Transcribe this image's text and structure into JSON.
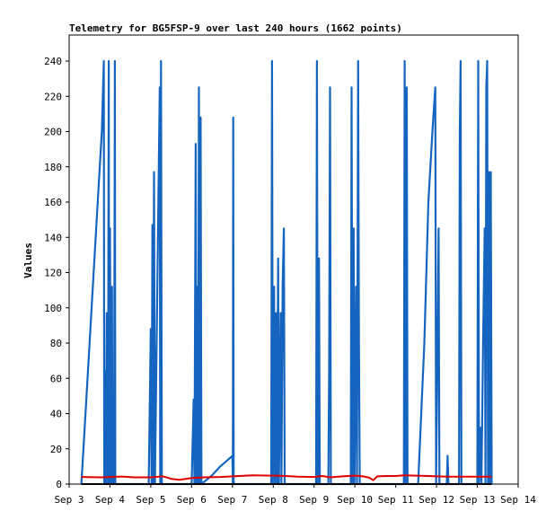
{
  "chart_data": {
    "type": "line",
    "title": "Telemetry for BG5FSP-9 over last 240 hours (1662 points)",
    "xlabel": "",
    "ylabel": "Values",
    "ylim": [
      0,
      240
    ],
    "yticks": [
      0,
      20,
      40,
      60,
      80,
      100,
      120,
      140,
      160,
      180,
      200,
      220,
      240
    ],
    "xlim": [
      3.0,
      14.0
    ],
    "xticks": [
      {
        "x": 3,
        "label": "Sep 3"
      },
      {
        "x": 4,
        "label": "Sep 4"
      },
      {
        "x": 5,
        "label": "Sep 5"
      },
      {
        "x": 6,
        "label": "Sep 6"
      },
      {
        "x": 7,
        "label": "Sep 7"
      },
      {
        "x": 8,
        "label": "Sep 8"
      },
      {
        "x": 9,
        "label": "Sep 9"
      },
      {
        "x": 10,
        "label": "Sep 10"
      },
      {
        "x": 11,
        "label": "Sep 11"
      },
      {
        "x": 12,
        "label": "Sep 12"
      },
      {
        "x": 13,
        "label": "Sep 13"
      },
      {
        "x": 14,
        "label": "Sep 14"
      }
    ],
    "x_unit_note_hidden": "",
    "grid": false,
    "legend": "none",
    "series": [
      {
        "color": "#1565c0",
        "points": [
          [
            3.3,
            0
          ],
          [
            3.35,
            20
          ],
          [
            3.45,
            60
          ],
          [
            3.55,
            100
          ],
          [
            3.7,
            160
          ],
          [
            3.8,
            200
          ],
          [
            3.85,
            240
          ],
          [
            3.86,
            0
          ],
          [
            3.88,
            64
          ],
          [
            3.9,
            0
          ],
          [
            3.92,
            97
          ],
          [
            3.95,
            0
          ],
          [
            3.97,
            240
          ],
          [
            3.98,
            0
          ],
          [
            4.0,
            145
          ],
          [
            4.02,
            0
          ],
          [
            4.05,
            112
          ],
          [
            4.06,
            0
          ],
          [
            4.08,
            48
          ],
          [
            4.1,
            0
          ],
          [
            4.12,
            240
          ],
          [
            4.13,
            0
          ],
          [
            4.95,
            0
          ],
          [
            5.0,
            88
          ],
          [
            5.02,
            0
          ],
          [
            5.04,
            147
          ],
          [
            5.06,
            0
          ],
          [
            5.08,
            177
          ],
          [
            5.1,
            0
          ],
          [
            5.22,
            225
          ],
          [
            5.23,
            0
          ],
          [
            5.25,
            240
          ],
          [
            5.27,
            0
          ],
          [
            6.0,
            0
          ],
          [
            6.05,
            48
          ],
          [
            6.07,
            0
          ],
          [
            6.1,
            193
          ],
          [
            6.12,
            0
          ],
          [
            6.14,
            112
          ],
          [
            6.16,
            0
          ],
          [
            6.18,
            225
          ],
          [
            6.2,
            0
          ],
          [
            6.22,
            208
          ],
          [
            6.24,
            0
          ],
          [
            6.5,
            5
          ],
          [
            6.7,
            10
          ],
          [
            7.0,
            16
          ],
          [
            7.01,
            0
          ],
          [
            7.02,
            208
          ],
          [
            7.03,
            0
          ],
          [
            7.95,
            0
          ],
          [
            7.97,
            240
          ],
          [
            7.99,
            0
          ],
          [
            8.0,
            84
          ],
          [
            8.02,
            112
          ],
          [
            8.04,
            0
          ],
          [
            8.07,
            97
          ],
          [
            8.09,
            0
          ],
          [
            8.12,
            128
          ],
          [
            8.14,
            0
          ],
          [
            8.18,
            97
          ],
          [
            8.2,
            0
          ],
          [
            8.23,
            112
          ],
          [
            8.26,
            145
          ],
          [
            8.28,
            0
          ],
          [
            9.05,
            0
          ],
          [
            9.07,
            240
          ],
          [
            9.09,
            0
          ],
          [
            9.12,
            128
          ],
          [
            9.14,
            0
          ],
          [
            9.35,
            0
          ],
          [
            9.37,
            64
          ],
          [
            9.39,
            225
          ],
          [
            9.41,
            0
          ],
          [
            9.9,
            0
          ],
          [
            9.92,
            225
          ],
          [
            9.94,
            0
          ],
          [
            9.97,
            145
          ],
          [
            9.99,
            0
          ],
          [
            10.03,
            112
          ],
          [
            10.05,
            0
          ],
          [
            10.08,
            240
          ],
          [
            10.1,
            80
          ],
          [
            10.12,
            0
          ],
          [
            11.2,
            0
          ],
          [
            11.22,
            240
          ],
          [
            11.24,
            0
          ],
          [
            11.27,
            225
          ],
          [
            11.29,
            0
          ],
          [
            11.55,
            0
          ],
          [
            11.7,
            80
          ],
          [
            11.8,
            160
          ],
          [
            11.9,
            200
          ],
          [
            11.97,
            225
          ],
          [
            11.99,
            0
          ],
          [
            12.05,
            145
          ],
          [
            12.07,
            0
          ],
          [
            12.25,
            0
          ],
          [
            12.27,
            16
          ],
          [
            12.29,
            0
          ],
          [
            12.55,
            0
          ],
          [
            12.57,
            200
          ],
          [
            12.59,
            240
          ],
          [
            12.61,
            0
          ],
          [
            13.0,
            0
          ],
          [
            13.02,
            240
          ],
          [
            13.04,
            0
          ],
          [
            13.08,
            32
          ],
          [
            13.1,
            0
          ],
          [
            13.14,
            80
          ],
          [
            13.16,
            112
          ],
          [
            13.18,
            145
          ],
          [
            13.2,
            0
          ],
          [
            13.22,
            225
          ],
          [
            13.24,
            240
          ],
          [
            13.26,
            0
          ],
          [
            13.28,
            177
          ],
          [
            13.3,
            0
          ],
          [
            13.33,
            177
          ],
          [
            13.35,
            0
          ]
        ]
      },
      {
        "color": "#e00000",
        "points": [
          [
            3.3,
            4.0
          ],
          [
            3.8,
            3.8
          ],
          [
            4.0,
            4.0
          ],
          [
            4.3,
            4.3
          ],
          [
            4.6,
            3.8
          ],
          [
            5.0,
            3.8
          ],
          [
            5.3,
            4.4
          ],
          [
            5.5,
            3.0
          ],
          [
            5.7,
            2.4
          ],
          [
            6.0,
            3.4
          ],
          [
            6.3,
            3.8
          ],
          [
            6.7,
            4.0
          ],
          [
            7.0,
            4.4
          ],
          [
            7.5,
            5.0
          ],
          [
            8.0,
            4.8
          ],
          [
            8.3,
            4.6
          ],
          [
            8.6,
            4.2
          ],
          [
            9.0,
            4.0
          ],
          [
            9.2,
            4.6
          ],
          [
            9.4,
            3.8
          ],
          [
            9.7,
            4.4
          ],
          [
            10.0,
            4.8
          ],
          [
            10.2,
            4.4
          ],
          [
            10.35,
            3.6
          ],
          [
            10.45,
            2.2
          ],
          [
            10.55,
            4.4
          ],
          [
            10.8,
            4.6
          ],
          [
            11.0,
            4.6
          ],
          [
            11.2,
            5.0
          ],
          [
            11.5,
            4.8
          ],
          [
            11.8,
            4.6
          ],
          [
            12.0,
            4.4
          ],
          [
            12.3,
            4.2
          ],
          [
            12.6,
            4.2
          ],
          [
            13.0,
            4.2
          ],
          [
            13.35,
            4.2
          ]
        ]
      },
      {
        "color": "#000000",
        "points": [
          [
            3.3,
            0
          ],
          [
            13.35,
            0
          ]
        ]
      }
    ]
  }
}
